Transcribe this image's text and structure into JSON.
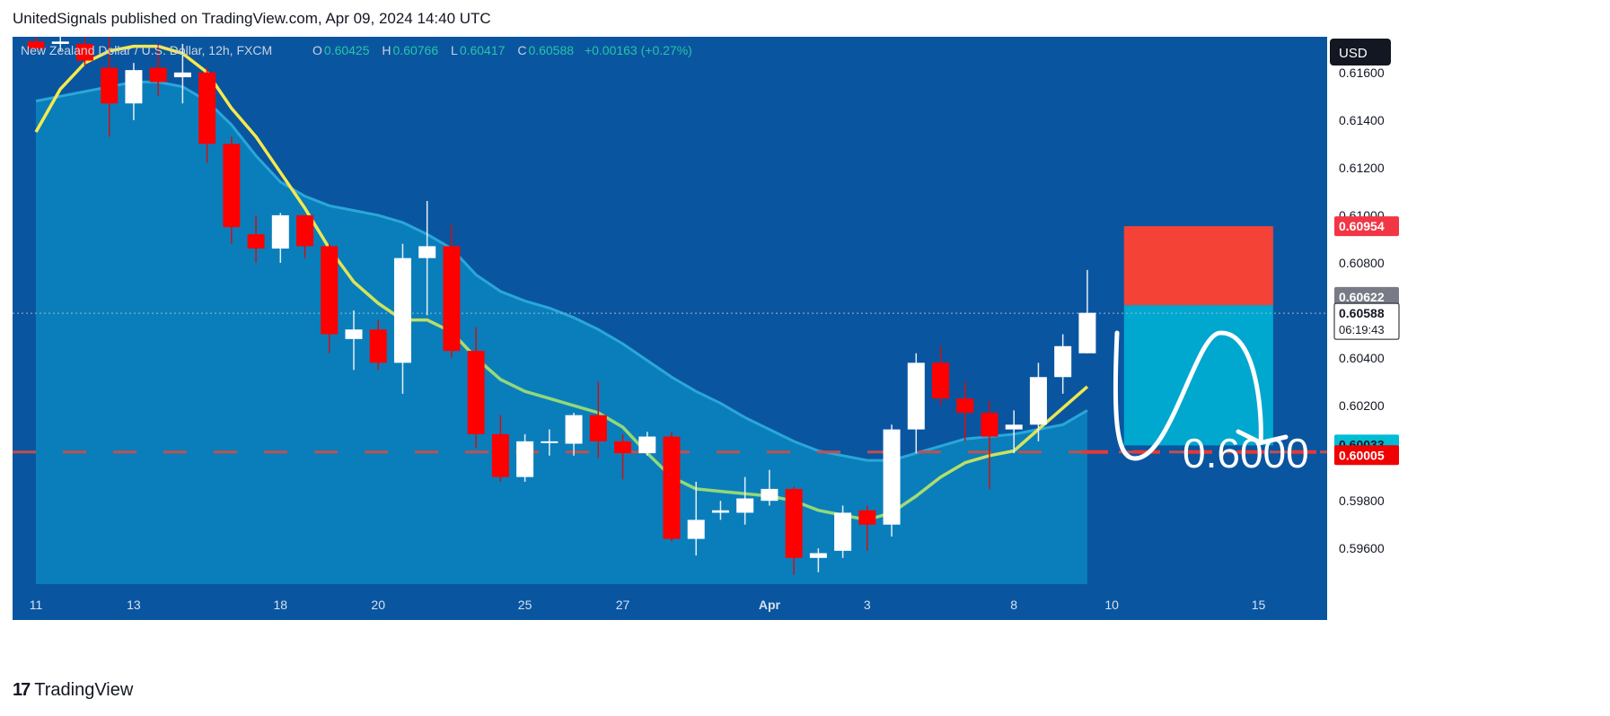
{
  "header": {
    "publish_line": "UnitedSignals published on TradingView.com, Apr 09, 2024 14:40 UTC"
  },
  "legend": {
    "symbol": "New Zealand Dollar / U.S. Dollar, 12h, FXCM",
    "o_label": "O",
    "o_value": "0.60425",
    "h_label": "H",
    "h_value": "0.60766",
    "l_label": "L",
    "l_value": "0.60417",
    "c_label": "C",
    "c_value": "0.60588",
    "change": "+0.00163 (+0.27%)"
  },
  "currency": "USD",
  "price_tags": {
    "stop": "0.60954",
    "level_gray": "0.60622",
    "last": "0.60588",
    "countdown": "06:19:43",
    "target_cyan": "0.60033",
    "support_red": "0.60005"
  },
  "annotation": {
    "target_text": "0.6000"
  },
  "footer": {
    "brand": "TradingView"
  },
  "colors": {
    "background": "#0a55a0",
    "up_candle": "#ffffff",
    "down_candle": "#ff0000",
    "ma_line_start": "#f6e94a",
    "ma_line_end": "#93d87a",
    "cloud": "#0b86c0",
    "stop_zone": "#f44336",
    "target_zone": "#00a7cf",
    "support_line": "#e53935"
  },
  "chart_data": {
    "type": "candlestick",
    "timeframe": "12h",
    "y_range": [
      0.5945,
      0.6175
    ],
    "y_ticks": [
      "0.59600",
      "0.59800",
      "0.60000",
      "0.60200",
      "0.60400",
      "0.60600",
      "0.60800",
      "0.61000",
      "0.61200",
      "0.61400",
      "0.61600"
    ],
    "x_ticks": [
      {
        "label": "11",
        "bar": 0
      },
      {
        "label": "13",
        "bar": 4
      },
      {
        "label": "18",
        "bar": 10
      },
      {
        "label": "20",
        "bar": 14
      },
      {
        "label": "25",
        "bar": 20
      },
      {
        "label": "27",
        "bar": 24
      },
      {
        "label": "Apr",
        "bar": 30
      },
      {
        "label": "3",
        "bar": 34
      },
      {
        "label": "8",
        "bar": 40
      },
      {
        "label": "10",
        "bar": 44
      },
      {
        "label": "15",
        "bar": 50
      }
    ],
    "candles": [
      {
        "o": 0.6173,
        "h": 0.6175,
        "l": 0.617,
        "c": 0.617
      },
      {
        "o": 0.6172,
        "h": 0.6176,
        "l": 0.6169,
        "c": 0.6173
      },
      {
        "o": 0.6172,
        "h": 0.6176,
        "l": 0.6163,
        "c": 0.6165
      },
      {
        "o": 0.6162,
        "h": 0.6176,
        "l": 0.6133,
        "c": 0.6147
      },
      {
        "o": 0.6147,
        "h": 0.6164,
        "l": 0.614,
        "c": 0.6161
      },
      {
        "o": 0.6162,
        "h": 0.6172,
        "l": 0.615,
        "c": 0.6156
      },
      {
        "o": 0.6158,
        "h": 0.6172,
        "l": 0.6147,
        "c": 0.616
      },
      {
        "o": 0.616,
        "h": 0.6162,
        "l": 0.6122,
        "c": 0.613
      },
      {
        "o": 0.613,
        "h": 0.6133,
        "l": 0.6088,
        "c": 0.6095
      },
      {
        "o": 0.6092,
        "h": 0.61,
        "l": 0.608,
        "c": 0.6086
      },
      {
        "o": 0.6086,
        "h": 0.6101,
        "l": 0.608,
        "c": 0.61
      },
      {
        "o": 0.61,
        "h": 0.61,
        "l": 0.6082,
        "c": 0.6087
      },
      {
        "o": 0.6087,
        "h": 0.6088,
        "l": 0.6042,
        "c": 0.605
      },
      {
        "o": 0.6048,
        "h": 0.606,
        "l": 0.6035,
        "c": 0.6052
      },
      {
        "o": 0.6052,
        "h": 0.6056,
        "l": 0.6035,
        "c": 0.6038
      },
      {
        "o": 0.6038,
        "h": 0.6088,
        "l": 0.6025,
        "c": 0.6082
      },
      {
        "o": 0.6082,
        "h": 0.6106,
        "l": 0.6058,
        "c": 0.6087
      },
      {
        "o": 0.6087,
        "h": 0.6096,
        "l": 0.604,
        "c": 0.6043
      },
      {
        "o": 0.6043,
        "h": 0.6053,
        "l": 0.6002,
        "c": 0.6008
      },
      {
        "o": 0.6008,
        "h": 0.6016,
        "l": 0.5988,
        "c": 0.599
      },
      {
        "o": 0.599,
        "h": 0.6008,
        "l": 0.5988,
        "c": 0.6005
      },
      {
        "o": 0.6005,
        "h": 0.601,
        "l": 0.5999,
        "c": 0.6005
      },
      {
        "o": 0.6004,
        "h": 0.6017,
        "l": 0.5999,
        "c": 0.6016
      },
      {
        "o": 0.6016,
        "h": 0.603,
        "l": 0.5998,
        "c": 0.6005
      },
      {
        "o": 0.6005,
        "h": 0.6008,
        "l": 0.5989,
        "c": 0.6
      },
      {
        "o": 0.6,
        "h": 0.6009,
        "l": 0.5999,
        "c": 0.6007
      },
      {
        "o": 0.6007,
        "h": 0.6009,
        "l": 0.5963,
        "c": 0.5964
      },
      {
        "o": 0.5964,
        "h": 0.5988,
        "l": 0.5957,
        "c": 0.5972
      },
      {
        "o": 0.5975,
        "h": 0.598,
        "l": 0.5972,
        "c": 0.5976
      },
      {
        "o": 0.5975,
        "h": 0.599,
        "l": 0.597,
        "c": 0.5981
      },
      {
        "o": 0.598,
        "h": 0.5993,
        "l": 0.5978,
        "c": 0.5985
      },
      {
        "o": 0.5985,
        "h": 0.5986,
        "l": 0.5949,
        "c": 0.5956
      },
      {
        "o": 0.5956,
        "h": 0.596,
        "l": 0.595,
        "c": 0.5958
      },
      {
        "o": 0.5959,
        "h": 0.5978,
        "l": 0.5956,
        "c": 0.5975
      },
      {
        "o": 0.5976,
        "h": 0.5978,
        "l": 0.5959,
        "c": 0.597
      },
      {
        "o": 0.597,
        "h": 0.6012,
        "l": 0.5965,
        "c": 0.601
      },
      {
        "o": 0.601,
        "h": 0.6042,
        "l": 0.6,
        "c": 0.6038
      },
      {
        "o": 0.6038,
        "h": 0.6045,
        "l": 0.602,
        "c": 0.6023
      },
      {
        "o": 0.6023,
        "h": 0.603,
        "l": 0.6005,
        "c": 0.6017
      },
      {
        "o": 0.6017,
        "h": 0.6022,
        "l": 0.5985,
        "c": 0.6007
      },
      {
        "o": 0.601,
        "h": 0.6018,
        "l": 0.6,
        "c": 0.6012
      },
      {
        "o": 0.6012,
        "h": 0.6038,
        "l": 0.6005,
        "c": 0.6032
      },
      {
        "o": 0.6032,
        "h": 0.605,
        "l": 0.6025,
        "c": 0.6045
      },
      {
        "o": 0.6042,
        "h": 0.6077,
        "l": 0.6042,
        "c": 0.6059
      }
    ],
    "moving_average": [
      0.6135,
      0.6153,
      0.6164,
      0.6169,
      0.6171,
      0.6171,
      0.6168,
      0.616,
      0.6145,
      0.6133,
      0.6118,
      0.6103,
      0.6086,
      0.6072,
      0.6063,
      0.6056,
      0.6056,
      0.6051,
      0.604,
      0.6031,
      0.6026,
      0.6023,
      0.602,
      0.6017,
      0.6011,
      0.6,
      0.599,
      0.5985,
      0.5984,
      0.5983,
      0.5982,
      0.598,
      0.5976,
      0.5974,
      0.5972,
      0.5975,
      0.5982,
      0.599,
      0.5996,
      0.5999,
      0.6001,
      0.601,
      0.6019,
      0.6028
    ],
    "cloud_upper": [
      0.6148,
      0.615,
      0.6152,
      0.6154,
      0.6156,
      0.6156,
      0.6154,
      0.6148,
      0.6138,
      0.6125,
      0.6114,
      0.6108,
      0.6104,
      0.6102,
      0.61,
      0.6097,
      0.6092,
      0.6086,
      0.6075,
      0.6068,
      0.6064,
      0.6061,
      0.6057,
      0.6052,
      0.6046,
      0.6039,
      0.6032,
      0.6026,
      0.6021,
      0.6015,
      0.601,
      0.6005,
      0.6001,
      0.5999,
      0.5997,
      0.5997,
      0.6,
      0.6003,
      0.6006,
      0.6007,
      0.6008,
      0.601,
      0.6012,
      0.6018
    ],
    "levels": {
      "stop": 0.60954,
      "entry": 0.60622,
      "last": 0.60588,
      "target": 0.60033,
      "support": 0.60005
    }
  }
}
